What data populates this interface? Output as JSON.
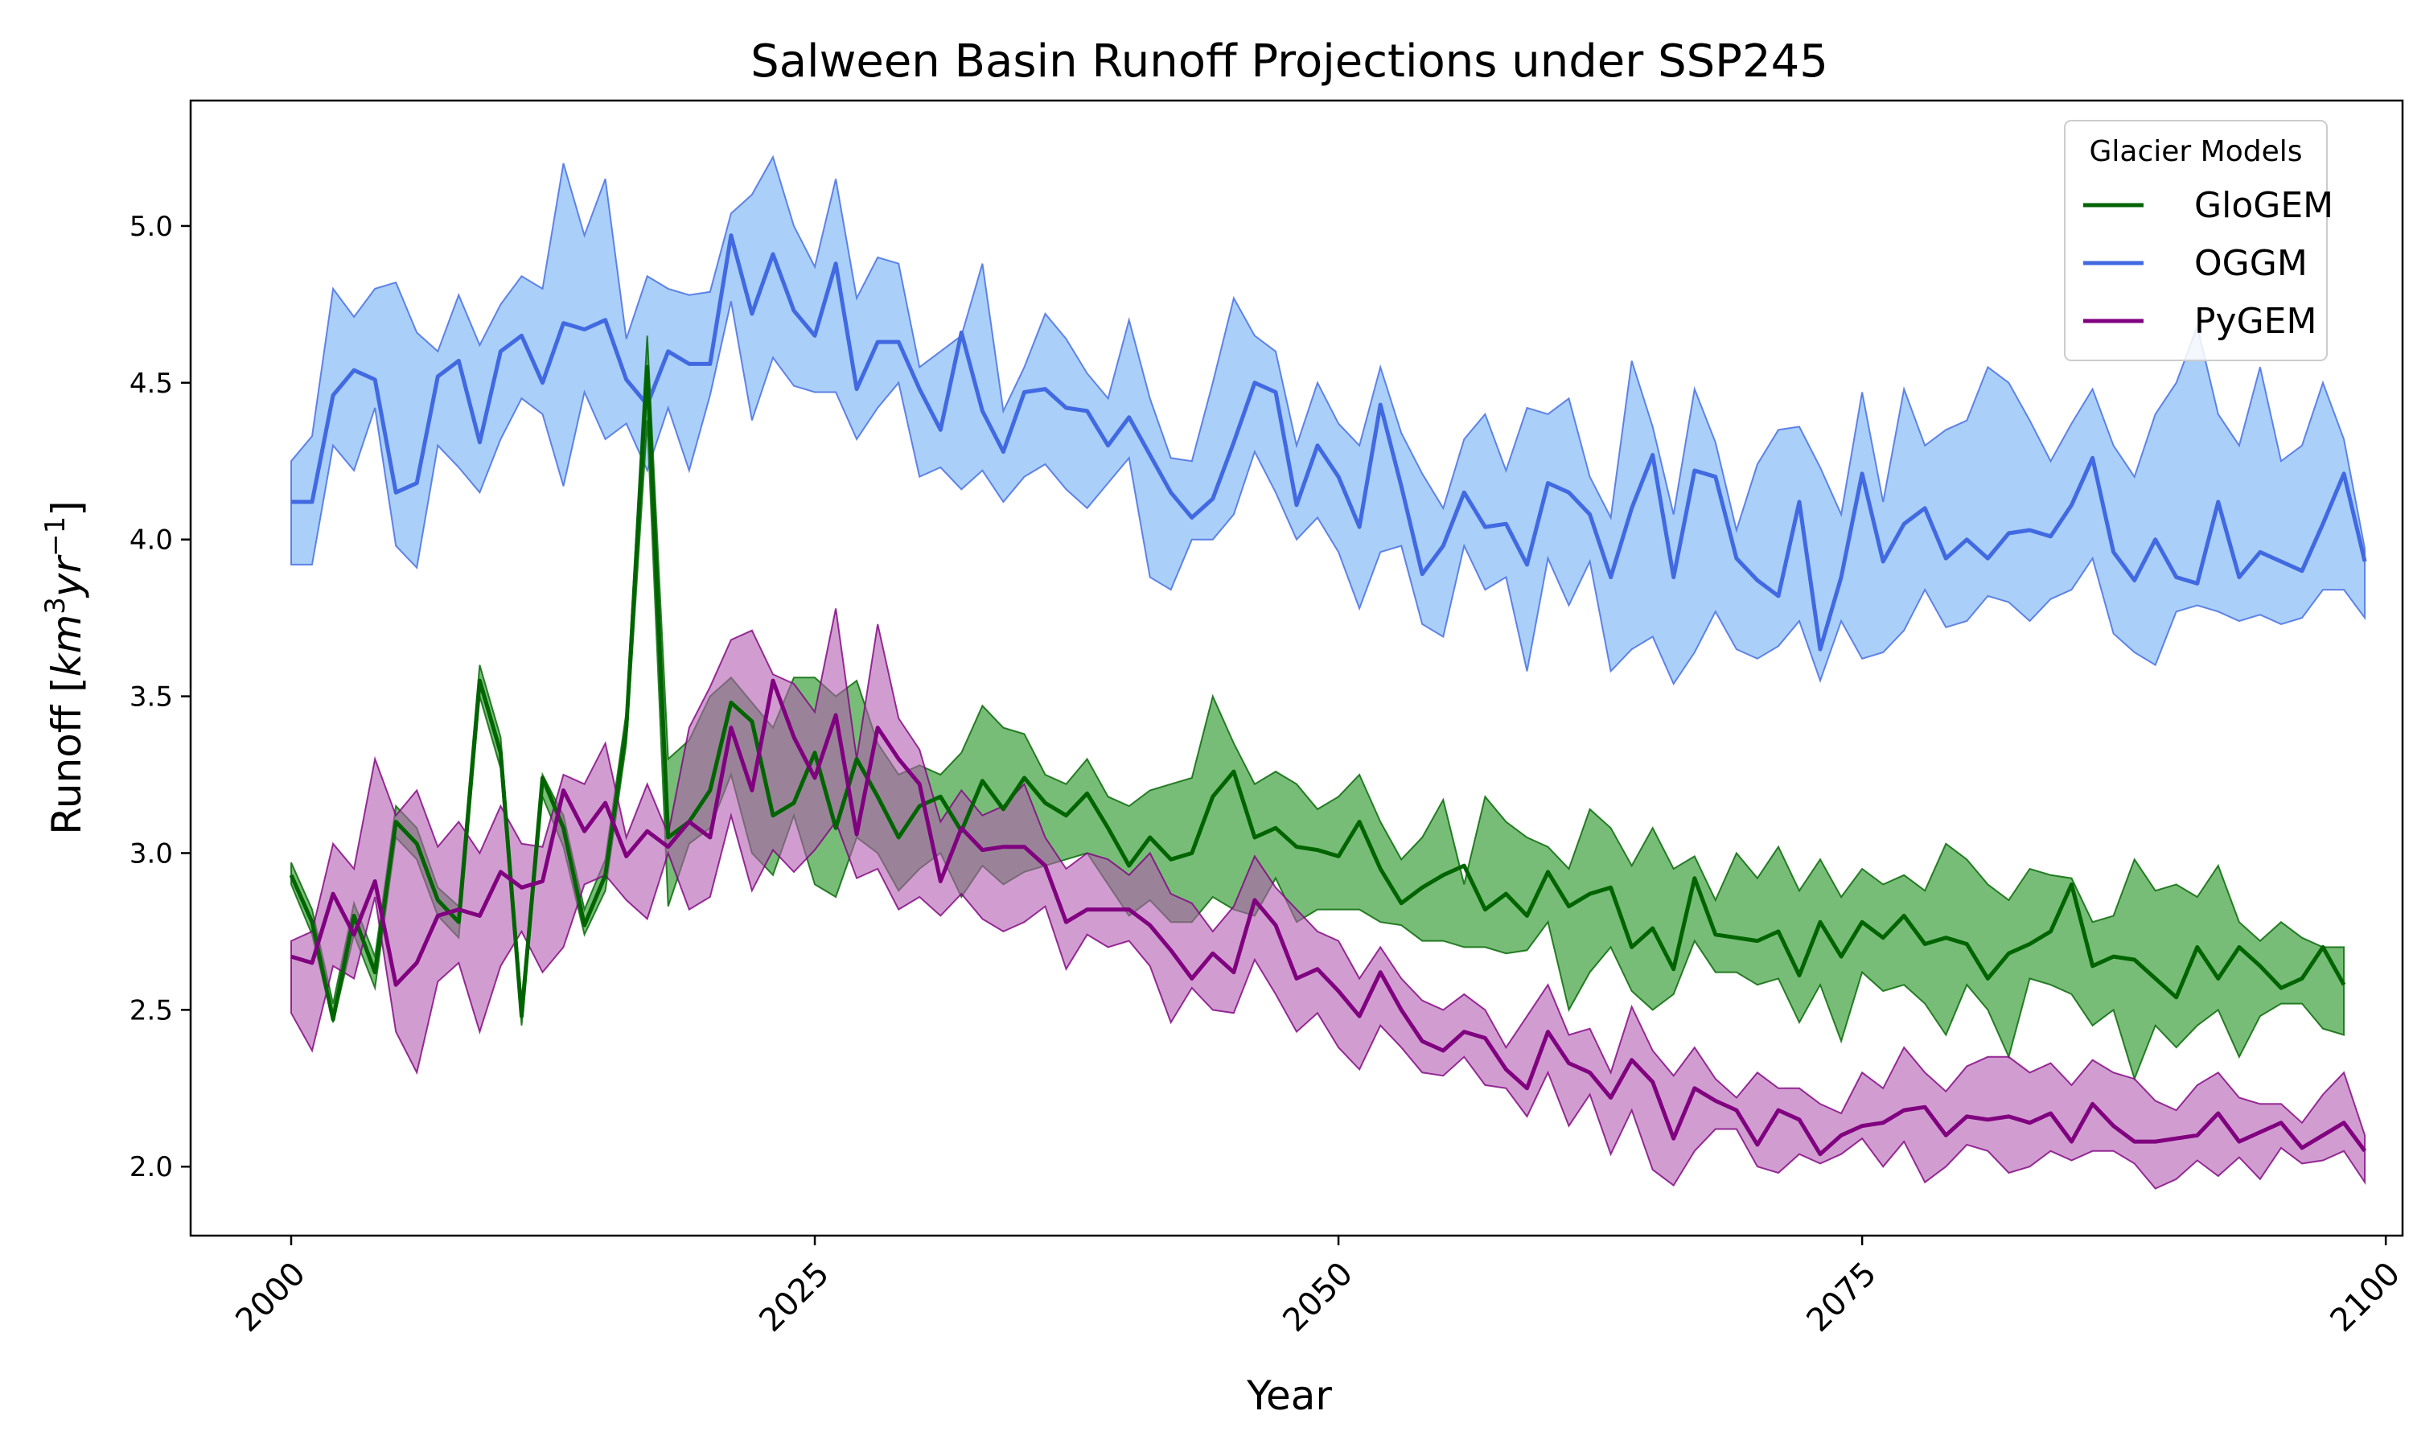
{
  "chart_data": {
    "type": "line",
    "title": "Salween Basin Runoff Projections under SSP245",
    "xlabel": "Year",
    "ylabel": "Runoff [km³yr⁻¹]",
    "ylabel_parts": {
      "prefix": "Runoff [",
      "unit_base": "km",
      "exp1": "3",
      "unit_mid": "yr",
      "exp2": "−1",
      "suffix": "]"
    },
    "xlim": [
      1995.2,
      2100.8
    ],
    "ylim": [
      1.78,
      5.4
    ],
    "xticks": [
      2000,
      2025,
      2050,
      2075,
      2100
    ],
    "xtick_labels": [
      "2000",
      "2025",
      "2050",
      "2075",
      "2100"
    ],
    "yticks": [
      2.0,
      2.5,
      3.0,
      3.5,
      4.0,
      4.5,
      5.0
    ],
    "ytick_labels": [
      "2.0",
      "2.5",
      "3.0",
      "3.5",
      "4.0",
      "4.5",
      "5.0"
    ],
    "legend": {
      "title": "Glacier Models",
      "position": "top-right"
    },
    "x_start": 2000,
    "series": [
      {
        "name": "GloGEM",
        "line_color": "#006400",
        "fill_color": "#2e9a2e",
        "values": [
          2.93,
          2.78,
          2.47,
          2.8,
          2.62,
          3.1,
          3.03,
          2.85,
          2.78,
          3.55,
          3.32,
          2.48,
          3.24,
          3.08,
          2.77,
          2.93,
          3.4,
          4.55,
          3.05,
          3.1,
          3.2,
          3.48,
          3.42,
          3.12,
          3.16,
          3.32,
          3.08,
          3.3,
          3.18,
          3.05,
          3.15,
          3.18,
          3.07,
          3.23,
          3.14,
          3.24,
          3.16,
          3.12,
          3.19,
          3.08,
          2.96,
          3.05,
          2.98,
          3.0,
          3.18,
          3.26,
          3.05,
          3.08,
          3.02,
          3.01,
          2.99,
          3.1,
          2.95,
          2.84,
          2.89,
          2.93,
          2.96,
          2.82,
          2.87,
          2.8,
          2.94,
          2.83,
          2.87,
          2.89,
          2.7,
          2.76,
          2.63,
          2.92,
          2.74,
          2.73,
          2.72,
          2.75,
          2.61,
          2.78,
          2.67,
          2.78,
          2.73,
          2.8,
          2.71,
          2.73,
          2.71,
          2.6,
          2.68,
          2.71,
          2.75,
          2.9,
          2.64,
          2.67,
          2.66,
          2.6,
          2.54,
          2.7,
          2.6,
          2.7,
          2.64,
          2.57,
          2.6,
          2.7,
          2.58
        ],
        "upper": [
          2.97,
          2.82,
          2.52,
          2.84,
          2.67,
          3.15,
          3.08,
          2.89,
          2.83,
          3.6,
          3.37,
          2.53,
          3.25,
          3.12,
          2.82,
          2.98,
          3.45,
          4.65,
          3.3,
          3.36,
          3.5,
          3.56,
          3.48,
          3.4,
          3.56,
          3.56,
          3.5,
          3.55,
          3.35,
          3.25,
          3.28,
          3.25,
          3.32,
          3.47,
          3.4,
          3.38,
          3.25,
          3.22,
          3.3,
          3.18,
          3.15,
          3.2,
          3.22,
          3.24,
          3.5,
          3.35,
          3.22,
          3.26,
          3.22,
          3.14,
          3.18,
          3.25,
          3.1,
          2.98,
          3.05,
          3.17,
          2.9,
          3.18,
          3.1,
          3.05,
          3.02,
          2.95,
          3.14,
          3.08,
          2.96,
          3.08,
          2.95,
          2.99,
          2.85,
          3.0,
          2.92,
          3.02,
          2.88,
          2.98,
          2.86,
          2.95,
          2.9,
          2.93,
          2.88,
          3.03,
          2.98,
          2.9,
          2.85,
          2.95,
          2.93,
          2.92,
          2.78,
          2.8,
          2.98,
          2.88,
          2.9,
          2.86,
          2.96,
          2.78,
          2.72,
          2.78,
          2.73,
          2.7,
          2.7
        ],
        "lower": [
          2.9,
          2.74,
          2.46,
          2.74,
          2.57,
          3.05,
          2.98,
          2.8,
          2.73,
          3.5,
          3.27,
          2.45,
          3.18,
          3.02,
          2.74,
          2.88,
          3.35,
          4.38,
          2.83,
          3.03,
          3.08,
          3.25,
          3.0,
          2.93,
          3.12,
          2.9,
          2.86,
          3.05,
          3.0,
          2.88,
          2.95,
          3.0,
          2.86,
          2.96,
          2.9,
          2.94,
          2.96,
          2.98,
          3.0,
          2.9,
          2.8,
          2.85,
          2.78,
          2.78,
          2.86,
          2.82,
          2.8,
          2.92,
          2.78,
          2.82,
          2.82,
          2.82,
          2.78,
          2.77,
          2.72,
          2.72,
          2.7,
          2.7,
          2.68,
          2.69,
          2.78,
          2.5,
          2.62,
          2.7,
          2.56,
          2.5,
          2.55,
          2.72,
          2.62,
          2.62,
          2.58,
          2.6,
          2.46,
          2.58,
          2.4,
          2.62,
          2.56,
          2.58,
          2.52,
          2.42,
          2.58,
          2.5,
          2.35,
          2.6,
          2.58,
          2.55,
          2.45,
          2.5,
          2.28,
          2.45,
          2.38,
          2.45,
          2.5,
          2.35,
          2.48,
          2.52,
          2.52,
          2.44,
          2.42
        ]
      },
      {
        "name": "OGGM",
        "line_color": "#4169e1",
        "fill_color": "#7db5f5",
        "values": [
          4.12,
          4.12,
          4.46,
          4.54,
          4.51,
          4.15,
          4.18,
          4.52,
          4.57,
          4.31,
          4.6,
          4.65,
          4.5,
          4.69,
          4.67,
          4.7,
          4.51,
          4.43,
          4.6,
          4.56,
          4.56,
          4.97,
          4.72,
          4.91,
          4.73,
          4.65,
          4.88,
          4.48,
          4.63,
          4.63,
          4.48,
          4.35,
          4.66,
          4.41,
          4.28,
          4.47,
          4.48,
          4.42,
          4.41,
          4.3,
          4.39,
          4.27,
          4.15,
          4.07,
          4.13,
          4.31,
          4.5,
          4.47,
          4.11,
          4.3,
          4.2,
          4.04,
          4.43,
          4.17,
          3.89,
          3.98,
          4.15,
          4.04,
          4.05,
          3.92,
          4.18,
          4.15,
          4.08,
          3.88,
          4.1,
          4.27,
          3.88,
          4.22,
          4.2,
          3.94,
          3.87,
          3.82,
          4.12,
          3.65,
          3.88,
          4.21,
          3.93,
          4.05,
          4.1,
          3.94,
          4.0,
          3.94,
          4.02,
          4.03,
          4.01,
          4.11,
          4.26,
          3.96,
          3.87,
          4.0,
          3.88,
          3.86,
          4.12,
          3.88,
          3.96,
          3.93,
          3.9,
          4.05,
          4.21,
          3.93
        ],
        "upper": [
          4.25,
          4.33,
          4.8,
          4.71,
          4.8,
          4.82,
          4.66,
          4.6,
          4.78,
          4.62,
          4.75,
          4.84,
          4.8,
          5.2,
          4.97,
          5.15,
          4.64,
          4.84,
          4.8,
          4.78,
          4.79,
          5.04,
          5.1,
          5.22,
          5.0,
          4.87,
          5.15,
          4.77,
          4.9,
          4.88,
          4.55,
          4.6,
          4.65,
          4.88,
          4.41,
          4.55,
          4.72,
          4.64,
          4.53,
          4.45,
          4.7,
          4.45,
          4.26,
          4.25,
          4.5,
          4.77,
          4.65,
          4.6,
          4.3,
          4.5,
          4.37,
          4.3,
          4.55,
          4.34,
          4.21,
          4.1,
          4.32,
          4.4,
          4.22,
          4.42,
          4.4,
          4.45,
          4.2,
          4.07,
          4.57,
          4.36,
          4.08,
          4.48,
          4.31,
          4.03,
          4.24,
          4.35,
          4.36,
          4.23,
          4.08,
          4.47,
          4.12,
          4.48,
          4.3,
          4.35,
          4.38,
          4.55,
          4.5,
          4.38,
          4.25,
          4.37,
          4.48,
          4.3,
          4.2,
          4.4,
          4.5,
          4.68,
          4.4,
          4.3,
          4.55,
          4.25,
          4.3,
          4.5,
          4.32,
          3.97
        ],
        "lower": [
          3.92,
          3.92,
          4.3,
          4.22,
          4.42,
          3.98,
          3.91,
          4.3,
          4.23,
          4.15,
          4.32,
          4.45,
          4.4,
          4.17,
          4.47,
          4.32,
          4.37,
          4.22,
          4.42,
          4.22,
          4.46,
          4.76,
          4.38,
          4.58,
          4.49,
          4.47,
          4.47,
          4.32,
          4.42,
          4.5,
          4.2,
          4.23,
          4.16,
          4.22,
          4.12,
          4.2,
          4.24,
          4.16,
          4.1,
          4.18,
          4.26,
          3.88,
          3.84,
          4.0,
          4.0,
          4.08,
          4.28,
          4.15,
          4.0,
          4.07,
          3.96,
          3.78,
          3.96,
          3.98,
          3.73,
          3.69,
          3.98,
          3.84,
          3.88,
          3.58,
          3.94,
          3.79,
          3.93,
          3.58,
          3.65,
          3.69,
          3.54,
          3.64,
          3.77,
          3.65,
          3.62,
          3.66,
          3.74,
          3.55,
          3.74,
          3.62,
          3.64,
          3.71,
          3.84,
          3.72,
          3.74,
          3.82,
          3.8,
          3.74,
          3.81,
          3.84,
          3.94,
          3.7,
          3.64,
          3.6,
          3.77,
          3.79,
          3.77,
          3.74,
          3.76,
          3.73,
          3.75,
          3.84,
          3.84,
          3.75
        ]
      },
      {
        "name": "PyGEM",
        "line_color": "#800080",
        "fill_color": "#b35cb0",
        "values": [
          2.67,
          2.65,
          2.87,
          2.74,
          2.91,
          2.58,
          2.65,
          2.8,
          2.82,
          2.8,
          2.94,
          2.89,
          2.91,
          3.2,
          3.07,
          3.16,
          2.99,
          3.07,
          3.02,
          3.1,
          3.05,
          3.4,
          3.2,
          3.55,
          3.37,
          3.24,
          3.44,
          3.06,
          3.4,
          3.3,
          3.22,
          2.91,
          3.08,
          3.01,
          3.02,
          3.02,
          2.96,
          2.78,
          2.82,
          2.82,
          2.82,
          2.77,
          2.69,
          2.6,
          2.68,
          2.62,
          2.85,
          2.77,
          2.6,
          2.63,
          2.56,
          2.48,
          2.62,
          2.5,
          2.4,
          2.37,
          2.43,
          2.41,
          2.31,
          2.25,
          2.43,
          2.33,
          2.3,
          2.22,
          2.34,
          2.27,
          2.09,
          2.25,
          2.21,
          2.18,
          2.07,
          2.18,
          2.15,
          2.04,
          2.1,
          2.13,
          2.14,
          2.18,
          2.19,
          2.1,
          2.16,
          2.15,
          2.16,
          2.14,
          2.17,
          2.08,
          2.2,
          2.13,
          2.08,
          2.08,
          2.09,
          2.1,
          2.17,
          2.08,
          2.11,
          2.14,
          2.06,
          2.1,
          2.14,
          2.05
        ],
        "upper": [
          2.72,
          2.75,
          3.03,
          2.95,
          3.3,
          3.12,
          3.2,
          3.02,
          3.1,
          3.0,
          3.15,
          3.03,
          3.02,
          3.25,
          3.22,
          3.35,
          3.05,
          3.22,
          3.06,
          3.4,
          3.53,
          3.68,
          3.71,
          3.57,
          3.54,
          3.45,
          3.78,
          3.3,
          3.73,
          3.43,
          3.33,
          3.1,
          3.2,
          3.12,
          3.15,
          3.22,
          3.05,
          2.95,
          3.0,
          2.98,
          2.93,
          3.0,
          2.87,
          2.84,
          2.75,
          2.83,
          2.99,
          2.89,
          2.82,
          2.75,
          2.72,
          2.6,
          2.7,
          2.6,
          2.53,
          2.5,
          2.55,
          2.5,
          2.38,
          2.48,
          2.58,
          2.42,
          2.44,
          2.3,
          2.51,
          2.37,
          2.29,
          2.38,
          2.28,
          2.22,
          2.3,
          2.25,
          2.25,
          2.2,
          2.17,
          2.3,
          2.25,
          2.38,
          2.3,
          2.24,
          2.32,
          2.35,
          2.35,
          2.3,
          2.33,
          2.26,
          2.34,
          2.3,
          2.28,
          2.21,
          2.18,
          2.26,
          2.3,
          2.22,
          2.2,
          2.2,
          2.14,
          2.23,
          2.3,
          2.1
        ],
        "lower": [
          2.49,
          2.37,
          2.64,
          2.6,
          2.86,
          2.43,
          2.3,
          2.59,
          2.65,
          2.43,
          2.64,
          2.75,
          2.62,
          2.7,
          2.9,
          2.93,
          2.85,
          2.79,
          3.0,
          2.82,
          2.86,
          3.12,
          2.88,
          3.01,
          2.94,
          3.01,
          3.1,
          2.92,
          2.95,
          2.82,
          2.86,
          2.8,
          2.87,
          2.79,
          2.75,
          2.78,
          2.83,
          2.63,
          2.74,
          2.7,
          2.72,
          2.64,
          2.46,
          2.57,
          2.5,
          2.49,
          2.66,
          2.55,
          2.43,
          2.49,
          2.38,
          2.31,
          2.45,
          2.38,
          2.3,
          2.29,
          2.35,
          2.26,
          2.25,
          2.16,
          2.3,
          2.13,
          2.23,
          2.04,
          2.18,
          1.99,
          1.94,
          2.05,
          2.12,
          2.12,
          2.0,
          1.98,
          2.04,
          2.01,
          2.04,
          2.09,
          2.0,
          2.08,
          1.95,
          2.0,
          2.07,
          2.05,
          1.98,
          2.0,
          2.05,
          2.02,
          2.05,
          2.05,
          2.01,
          1.93,
          1.96,
          2.02,
          1.97,
          2.03,
          1.96,
          2.06,
          2.01,
          2.02,
          2.05,
          1.95
        ]
      }
    ]
  }
}
